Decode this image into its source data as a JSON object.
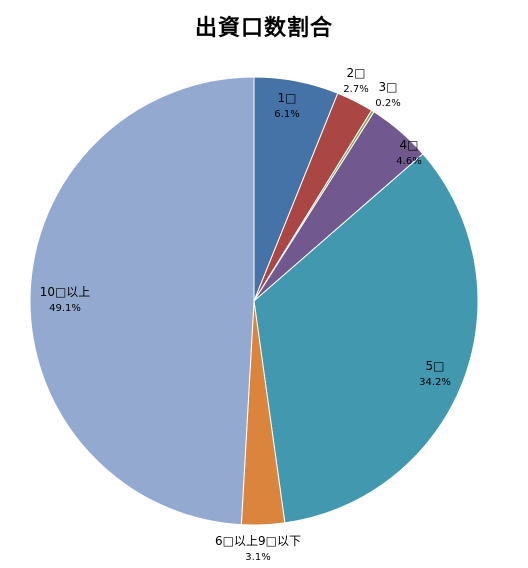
{
  "chart_data": {
    "type": "pie",
    "title": "出資口数割合",
    "categories": [
      "1□",
      "2□",
      "3□",
      "4□",
      "5□",
      "6□以上9□以下",
      "10□以上"
    ],
    "values": [
      6.1,
      2.7,
      0.2,
      4.6,
      34.2,
      3.1,
      49.1
    ],
    "value_labels": [
      "6.1%",
      "2.7%",
      "0.2%",
      "4.6%",
      "34.2%",
      "3.1%",
      "49.1%"
    ],
    "colors": [
      "#4572A7",
      "#AA4643",
      "#89A54E",
      "#71588F",
      "#4198AF",
      "#DB843D",
      "#93A9CF"
    ],
    "start_angle": "12 o'clock",
    "direction": "clockwise",
    "legend": "none"
  }
}
